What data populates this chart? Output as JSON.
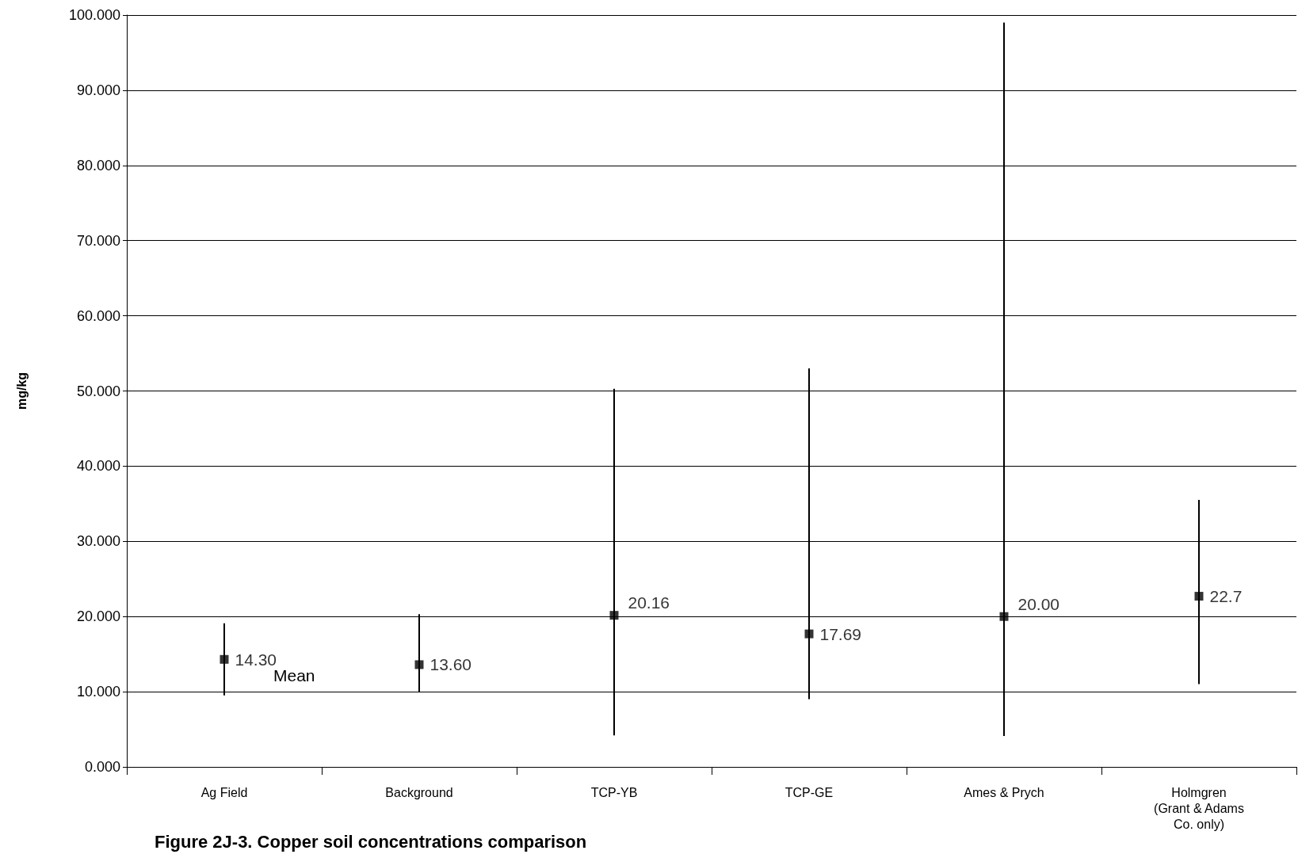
{
  "chart_data": {
    "type": "scatter",
    "title": "Figure 2J-3. Copper soil concentrations comparison",
    "ylabel": "mg/kg",
    "categories": [
      "Ag Field",
      "Background",
      "TCP-YB",
      "TCP-GE",
      "Ames & Prych",
      "Holmgren\n(Grant & Adams\nCo. only)"
    ],
    "values": [
      14.3,
      13.6,
      20.16,
      17.69,
      20.0,
      22.7
    ],
    "value_labels": [
      "14.30",
      "13.60",
      "20.16",
      "17.69",
      "20.00",
      "22.7"
    ],
    "errors": [
      [
        9.5,
        19.1
      ],
      [
        10.0,
        20.3
      ],
      [
        4.2,
        50.3
      ],
      [
        9.0,
        53.0
      ],
      [
        4.1,
        99.0
      ],
      [
        11.0,
        35.5
      ]
    ],
    "color": "#000000",
    "marker": "square",
    "ylim": [
      0,
      100
    ],
    "yticks": [
      {
        "value": 0,
        "label": "0.000"
      },
      {
        "value": 10,
        "label": "10.000"
      },
      {
        "value": 20,
        "label": "20.000"
      },
      {
        "value": 30,
        "label": "30.000"
      },
      {
        "value": 40,
        "label": "40.000"
      },
      {
        "value": 50,
        "label": "50.000"
      },
      {
        "value": 60,
        "label": "60.000"
      },
      {
        "value": 70,
        "label": "70.000"
      },
      {
        "value": 80,
        "label": "80.000"
      },
      {
        "value": 90,
        "label": "90.000"
      },
      {
        "value": 100,
        "label": "100.000"
      }
    ],
    "grid": "y",
    "annotations": [
      {
        "text": "Mean",
        "x": "Ag Field",
        "y": 14.3
      }
    ]
  }
}
